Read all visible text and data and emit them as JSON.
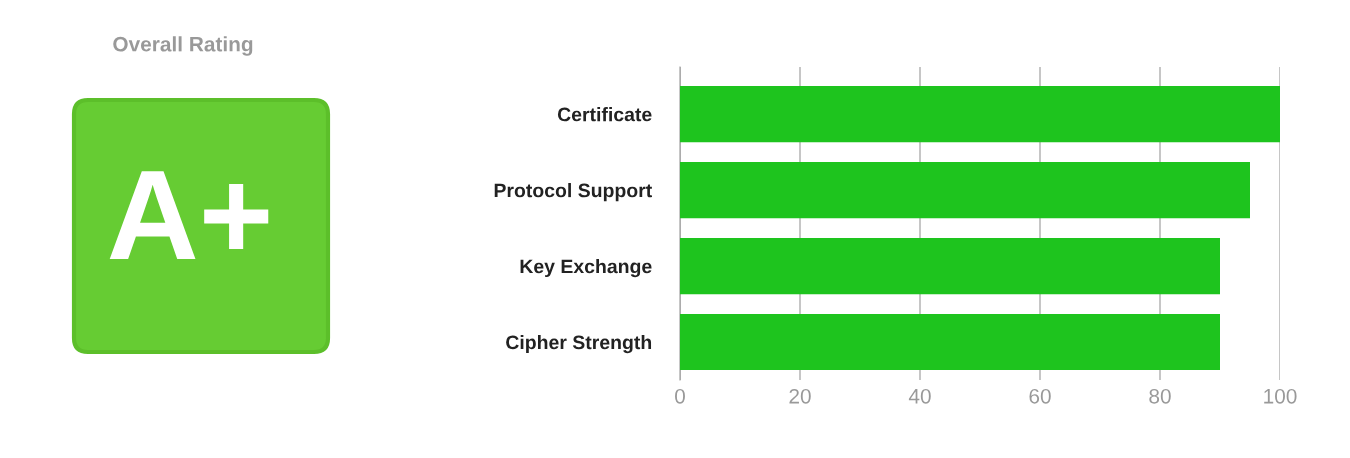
{
  "chart_data": [
    {
      "type": "other",
      "title": "Overall Rating",
      "annotations": [
        "A+"
      ],
      "color": "#66cc33"
    },
    {
      "type": "bar",
      "orientation": "horizontal",
      "categories": [
        "Certificate",
        "Protocol Support",
        "Key Exchange",
        "Cipher Strength"
      ],
      "values": [
        100,
        95,
        90,
        90
      ],
      "color": "#1ec41e",
      "xlim": [
        0,
        100
      ],
      "xticks": [
        0,
        20,
        40,
        60,
        80,
        100
      ],
      "grid": "x"
    }
  ]
}
